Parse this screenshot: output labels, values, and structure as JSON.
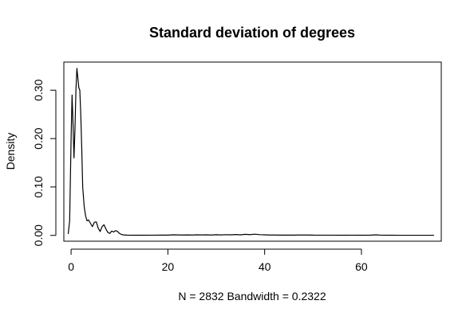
{
  "chart_data": {
    "type": "line",
    "title": "Standard deviation of degrees",
    "xlabel": "N = 2832   Bandwidth = 0.2322",
    "ylabel": "Density",
    "xlim": [
      -1.5,
      76.5
    ],
    "ylim": [
      -0.012,
      0.358
    ],
    "x_ticks": [
      0,
      20,
      40,
      60
    ],
    "x_tick_labels": [
      "0",
      "20",
      "40",
      "60"
    ],
    "y_ticks": [
      0.0,
      0.1,
      0.2,
      0.3
    ],
    "y_tick_labels": [
      "0.00",
      "0.10",
      "0.20",
      "0.30"
    ],
    "grid": false,
    "legend": "none",
    "series": [
      {
        "x": [
          -0.6,
          -0.3,
          0.0,
          0.2,
          0.4,
          0.6,
          0.8,
          1.0,
          1.2,
          1.4,
          1.6,
          1.8,
          2.0,
          2.2,
          2.4,
          2.7,
          3.0,
          3.3,
          3.6,
          4.0,
          4.4,
          4.8,
          5.2,
          5.6,
          6.0,
          6.4,
          6.8,
          7.2,
          7.6,
          8.0,
          8.4,
          8.8,
          9.2,
          9.6,
          10.0,
          10.4,
          10.8,
          11.5,
          13,
          15,
          17,
          19,
          20,
          21,
          22,
          23,
          24,
          25,
          26,
          27,
          28,
          29,
          30,
          31,
          32,
          33,
          34,
          35,
          36,
          37,
          38,
          39,
          40,
          41,
          42,
          43,
          44,
          45,
          46,
          47,
          48,
          49,
          50,
          52,
          54,
          56,
          58,
          60,
          62,
          63,
          64,
          66,
          68,
          70,
          72,
          74,
          75
        ],
        "y": [
          0.003,
          0.03,
          0.2,
          0.29,
          0.23,
          0.16,
          0.22,
          0.3,
          0.345,
          0.325,
          0.305,
          0.3,
          0.25,
          0.18,
          0.1,
          0.06,
          0.04,
          0.03,
          0.032,
          0.025,
          0.018,
          0.027,
          0.028,
          0.015,
          0.008,
          0.018,
          0.022,
          0.013,
          0.006,
          0.004,
          0.009,
          0.007,
          0.01,
          0.008,
          0.004,
          0.002,
          0.001,
          0.0005,
          0.0003,
          0.0003,
          0.0004,
          0.0005,
          0.0006,
          0.0012,
          0.0009,
          0.0007,
          0.001,
          0.0008,
          0.0012,
          0.0009,
          0.0011,
          0.0007,
          0.0014,
          0.0009,
          0.0015,
          0.0011,
          0.0018,
          0.0012,
          0.0022,
          0.0016,
          0.0025,
          0.0015,
          0.0012,
          0.0008,
          0.0007,
          0.0006,
          0.0006,
          0.0005,
          0.0006,
          0.0008,
          0.0007,
          0.0008,
          0.0005,
          0.0004,
          0.0004,
          0.0003,
          0.0004,
          0.0003,
          0.0005,
          0.0012,
          0.0004,
          0.0003,
          0.0002,
          0.0002,
          0.0002,
          0.0002,
          0.0002
        ]
      }
    ]
  }
}
